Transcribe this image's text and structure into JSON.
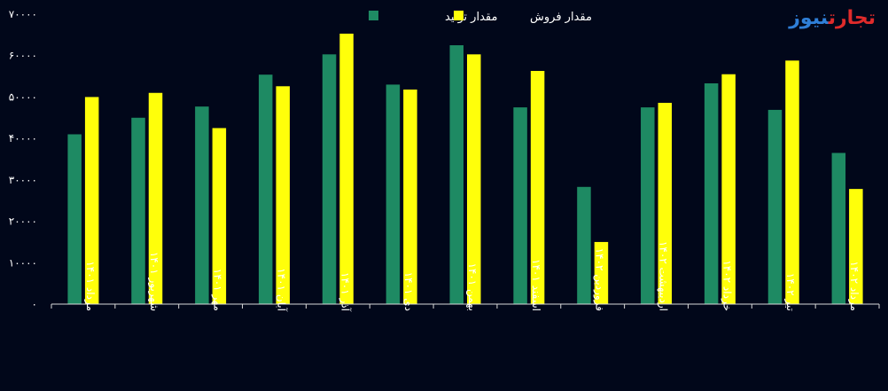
{
  "brand": {
    "part1": "تجارت",
    "part2": "نیوز",
    "accent_red": "#e02b2b",
    "accent_blue": "#2f7fd8"
  },
  "chart_data": {
    "type": "bar",
    "title": "",
    "xlabel": "",
    "ylabel": "",
    "ylim": [
      0,
      70000
    ],
    "yticks": [
      0,
      10000,
      20000,
      30000,
      40000,
      50000,
      60000,
      70000
    ],
    "ytick_labels": [
      "۰",
      "۱۰۰۰۰",
      "۲۰۰۰۰",
      "۳۰۰۰۰",
      "۴۰۰۰۰",
      "۵۰۰۰۰",
      "۶۰۰۰۰",
      "۷۰۰۰۰"
    ],
    "grid": false,
    "legend_position": "top-center",
    "categories": [
      "مرداد ۱۴۰۱",
      "شهریور ۱۴۰۱",
      "مهر ۱۴۰۱",
      "آبان ۱۴۰۱",
      "آذر ۱۴۰۱",
      "دی ۱۴۰۱",
      "بهمن ۱۴۰۱",
      "اسفند ۱۴۰۱",
      "فروردین ۱۴۰۲",
      "اردیبهشت ۱۴۰۲",
      "خرداد ۱۴۰۲",
      "تیر ۱۴۰۲",
      "مرداد ۱۴۰۲"
    ],
    "series": [
      {
        "name": "مقدار تولید",
        "color": "#1e8a63",
        "values": [
          41000,
          45000,
          47700,
          55400,
          60300,
          53000,
          62500,
          47500,
          28300,
          47500,
          53300,
          46900,
          36500
        ]
      },
      {
        "name": "مقدار فروش",
        "color": "#ffff0a",
        "values": [
          50000,
          51000,
          42500,
          52600,
          65300,
          51800,
          60300,
          56300,
          15000,
          48600,
          55500,
          58800,
          27800
        ]
      }
    ]
  }
}
